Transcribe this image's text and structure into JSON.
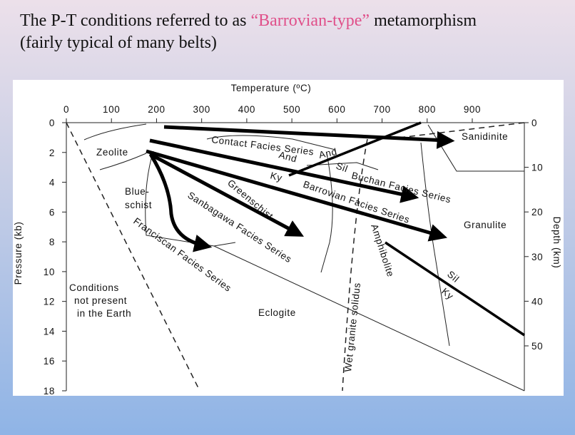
{
  "title": {
    "prefix": "The P-T conditions referred to as ",
    "highlight": "“Barrovian-type”",
    "suffix": " metamorphism",
    "line2": "(fairly typical of many belts)"
  },
  "diagram": {
    "x_axis": {
      "label": "Temperature (ºC)",
      "ticks": [
        0,
        100,
        200,
        300,
        400,
        500,
        600,
        700,
        800,
        900
      ]
    },
    "y_axis": {
      "label": "Pressure (kb)",
      "ticks": [
        0,
        2,
        4,
        6,
        8,
        10,
        12,
        14,
        16,
        18
      ]
    },
    "y2_axis": {
      "label": "Depth (km)",
      "ticks": [
        0,
        10,
        20,
        30,
        40,
        50
      ]
    },
    "facies": {
      "zeolite": "Zeolite",
      "blueschist": [
        "Blue-",
        "schist"
      ],
      "greenschist": "Greenschist",
      "amphibolite": "Amphibolite",
      "granulite": "Granulite",
      "eclogite": "Eclogite",
      "sanidinite": "Sanidinite"
    },
    "series": {
      "contact": "Contact Facies Series",
      "buchan": "Buchan Facies Series",
      "barrovian": "Barrovian Facies Series",
      "sanbagawa": "Sanbagawa Facies Series",
      "franciscan": "Franciscan Facies Series"
    },
    "minerals": {
      "and_1": "And",
      "and_2": "And",
      "sil_1": "Sil",
      "sil_2": "Sil",
      "ky_1": "Ky",
      "ky_2": "Ky"
    },
    "solidus": "Wet granite solidus",
    "forbidden": [
      "Conditions",
      "not present",
      "in the Earth"
    ]
  }
}
